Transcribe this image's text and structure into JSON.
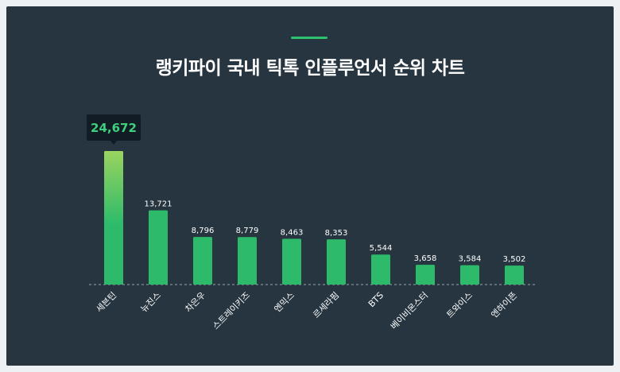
{
  "title": "랭키파이 국내 틱톡 인플루언서 순위 차트",
  "colors": {
    "background": "#263540",
    "accent": "#2fbf71",
    "bar": "#2dbb6b",
    "bar_top_highlight": "#9ad45f",
    "tooltip_bg": "#111c24",
    "tooltip_text": "#3fd07e",
    "label_text": "#ffffff",
    "baseline": "#9aa7b2"
  },
  "tooltip": {
    "value_label": "24,672"
  },
  "chart_data": {
    "type": "bar",
    "title": "랭키파이 국내 틱톡 인플루언서 순위 차트",
    "categories": [
      "세븐틴",
      "뉴진스",
      "차은우",
      "스트레이키즈",
      "엔믹스",
      "르세라핌",
      "BTS",
      "베이비몬스터",
      "트와이스",
      "엔하이픈"
    ],
    "values": [
      24672,
      13721,
      8796,
      8779,
      8463,
      8353,
      5544,
      3658,
      3584,
      3502
    ],
    "value_labels": [
      "24,672",
      "13,721",
      "8,796",
      "8,779",
      "8,463",
      "8,353",
      "5,544",
      "3,658",
      "3,584",
      "3,502"
    ],
    "xlabel": "",
    "ylabel": "",
    "ylim": [
      0,
      24672
    ],
    "grid": false,
    "highlight_index": 0
  }
}
